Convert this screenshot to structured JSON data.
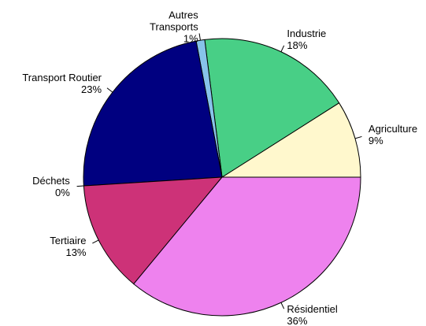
{
  "chart_data": {
    "type": "pie",
    "categories": [
      "Agriculture",
      "Industrie",
      "Autres\nTransports",
      "Transport Routier",
      "Déchets",
      "Tertiaire",
      "Résidentiel"
    ],
    "values": [
      9,
      18,
      1,
      23,
      0,
      13,
      36
    ],
    "value_labels": [
      "9%",
      "18%",
      "1%",
      "23%",
      "0%",
      "13%",
      "36%"
    ],
    "colors": [
      "#fff8cd",
      "#48cf86",
      "#87c3ea",
      "#000080",
      "#a0a0a0",
      "#cd3278",
      "#ee82ee"
    ]
  }
}
